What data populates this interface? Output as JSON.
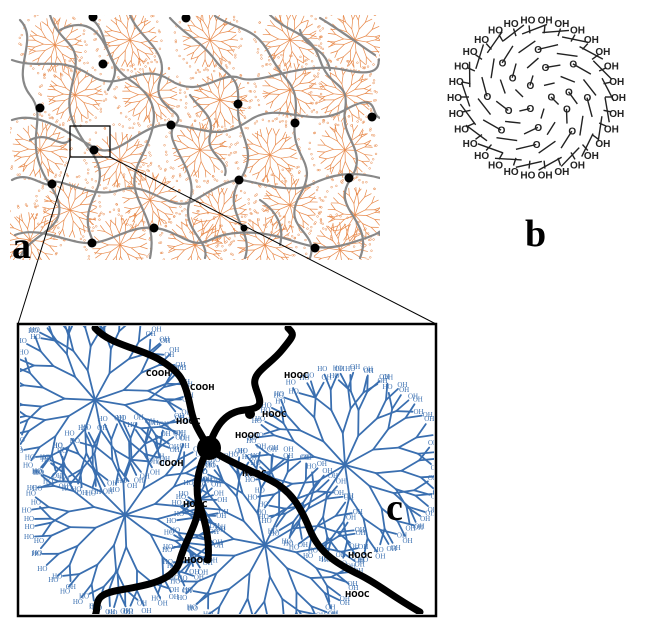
{
  "panels": {
    "a": {
      "letter": "a"
    },
    "b": {
      "letter": "b",
      "hydroxyl_label": "OH",
      "hydroxyl_label_alt": "HO",
      "oxygen_label": "O"
    },
    "c": {
      "letter": "c",
      "carboxyl_labels": [
        "COOH",
        "COOH",
        "HOOC",
        "HOOC",
        "HOOC",
        "COOH",
        "HOOC",
        "HOOC",
        "HOOC",
        "HOOC",
        "HOOC",
        "HOOC"
      ],
      "hydroxyl_label": "OH",
      "hydroxyl_label_alt": "HO"
    }
  },
  "colors": {
    "polymer_chain": "#888888",
    "crosslink_node": "#000000",
    "dendrimer_orange": "#e8894a",
    "dendrimer_blue": "#3a6fb0",
    "molecule_line": "#222222"
  }
}
